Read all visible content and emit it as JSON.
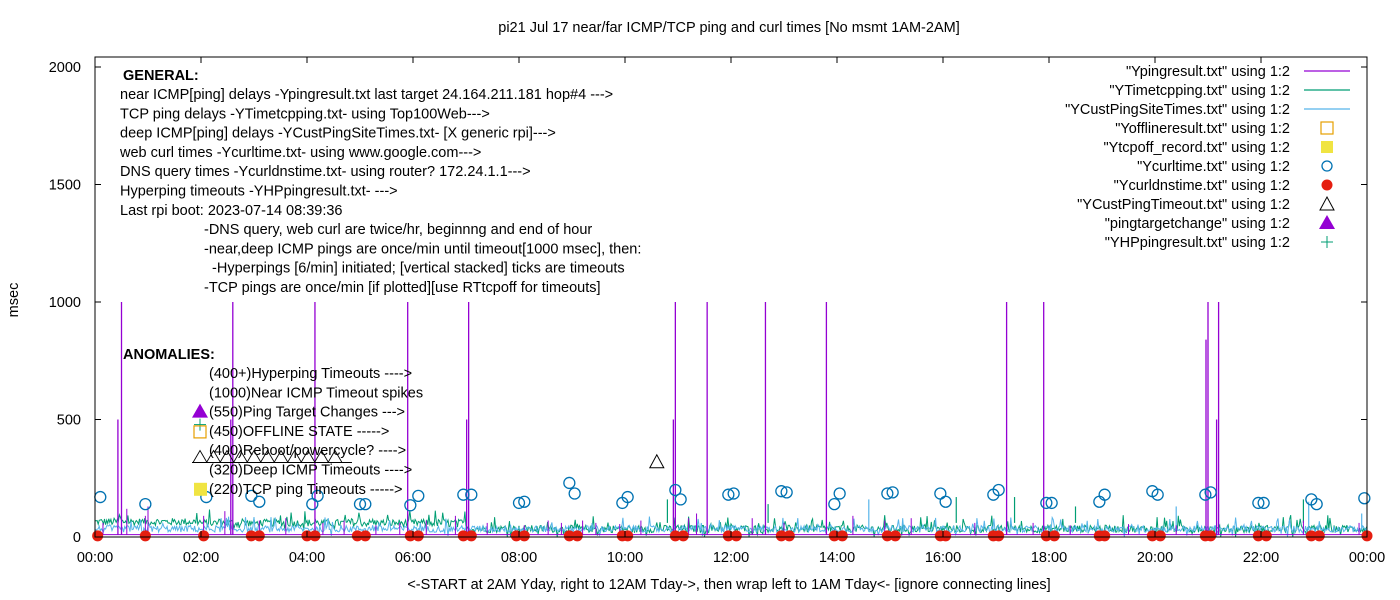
{
  "chart_data": {
    "type": "line",
    "title": "pi21 Jul 17  near/far ICMP/TCP ping and curl times [No msmt 1AM-2AM]",
    "xlabel": "<-START at 2AM Yday, right to 12AM Tday->, then wrap left to 1AM Tday<- [ignore connecting lines]",
    "ylabel": "msec",
    "xlim_hours": [
      0,
      24
    ],
    "ylim": [
      0,
      2000
    ],
    "grid": false,
    "x_ticks": [
      {
        "h": 0,
        "label": "00:00"
      },
      {
        "h": 2,
        "label": "02:00"
      },
      {
        "h": 4,
        "label": "04:00"
      },
      {
        "h": 6,
        "label": "06:00"
      },
      {
        "h": 8,
        "label": "08:00"
      },
      {
        "h": 10,
        "label": "10:00"
      },
      {
        "h": 12,
        "label": "12:00"
      },
      {
        "h": 14,
        "label": "14:00"
      },
      {
        "h": 16,
        "label": "16:00"
      },
      {
        "h": 18,
        "label": "18:00"
      },
      {
        "h": 20,
        "label": "20:00"
      },
      {
        "h": 22,
        "label": "22:00"
      },
      {
        "h": 24,
        "label": "00:00"
      }
    ],
    "y_ticks": [
      {
        "v": 0,
        "label": "0"
      },
      {
        "v": 500,
        "label": "500"
      },
      {
        "v": 1000,
        "label": "1000"
      },
      {
        "v": 1500,
        "label": "1500"
      },
      {
        "v": 2000,
        "label": "2000"
      }
    ],
    "legend_position": "top-right",
    "legend": [
      {
        "label": "\"Ypingresult.txt\" using 1:2",
        "style": "line",
        "color": "#9400d3"
      },
      {
        "label": "\"YTimetcpping.txt\" using 1:2",
        "style": "line",
        "color": "#009e73"
      },
      {
        "label": "\"YCustPingSiteTimes.txt\" using 1:2",
        "style": "line",
        "color": "#56b4e9"
      },
      {
        "label": "\"Yofflineresult.txt\" using 1:2",
        "style": "open-square",
        "color": "#e69f00"
      },
      {
        "label": "\"Ytcpoff_record.txt\" using 1:2",
        "style": "filled-square",
        "color": "#f0e442"
      },
      {
        "label": "\"Ycurltime.txt\" using 1:2",
        "style": "open-circle",
        "color": "#0072b2"
      },
      {
        "label": "\"Ycurldnstime.txt\" using 1:2",
        "style": "filled-circle",
        "color": "#e51e10"
      },
      {
        "label": "\"YCustPingTimeout.txt\" using 1:2",
        "style": "open-triangle",
        "color": "#000000"
      },
      {
        "label": "\"pingtargetchange\" using 1:2",
        "style": "filled-triangle",
        "color": "#9400d3"
      },
      {
        "label": "\"YHPpingresult.txt\" using 1:2",
        "style": "plus",
        "color": "#009e73"
      }
    ],
    "series": [
      {
        "name": "Ypingresult.txt",
        "kind": "spikes",
        "baseline_msec": 10,
        "timeout_spikes_1000": [
          0.5,
          2.6,
          4.15,
          5.9,
          7.05,
          10.95,
          11.55,
          12.65,
          13.8,
          17.2,
          17.9,
          21.0,
          21.2
        ],
        "partial_spikes": [
          {
            "h": 0.47,
            "v": 500
          },
          {
            "h": 2.6,
            "v": 500
          },
          {
            "h": 7.05,
            "v": 500
          },
          {
            "h": 10.95,
            "v": 500
          },
          {
            "h": 21.0,
            "v": 840
          },
          {
            "h": 21.2,
            "v": 500
          }
        ],
        "minor_spikes": [
          {
            "h": 0.15,
            "v": 60
          },
          {
            "h": 0.6,
            "v": 120
          },
          {
            "h": 0.95,
            "v": 90
          },
          {
            "h": 1.0,
            "v": 130
          },
          {
            "h": 2.05,
            "v": 90
          },
          {
            "h": 2.45,
            "v": 110
          },
          {
            "h": 3.1,
            "v": 70
          },
          {
            "h": 3.6,
            "v": 80
          },
          {
            "h": 4.3,
            "v": 60
          },
          {
            "h": 4.7,
            "v": 70
          },
          {
            "h": 5.3,
            "v": 50
          },
          {
            "h": 5.75,
            "v": 60
          },
          {
            "h": 6.25,
            "v": 70
          },
          {
            "h": 6.8,
            "v": 90
          },
          {
            "h": 7.4,
            "v": 60
          },
          {
            "h": 8.1,
            "v": 50
          },
          {
            "h": 8.55,
            "v": 70
          },
          {
            "h": 8.8,
            "v": 60
          },
          {
            "h": 9.2,
            "v": 70
          },
          {
            "h": 9.45,
            "v": 60
          },
          {
            "h": 9.9,
            "v": 55
          },
          {
            "h": 10.3,
            "v": 70
          },
          {
            "h": 11.2,
            "v": 80
          },
          {
            "h": 11.35,
            "v": 100
          },
          {
            "h": 12.4,
            "v": 80
          },
          {
            "h": 13.0,
            "v": 60
          },
          {
            "h": 14.3,
            "v": 90
          },
          {
            "h": 14.9,
            "v": 70
          },
          {
            "h": 15.4,
            "v": 80
          },
          {
            "h": 16.6,
            "v": 60
          },
          {
            "h": 17.7,
            "v": 60
          },
          {
            "h": 18.4,
            "v": 50
          },
          {
            "h": 19.5,
            "v": 55
          },
          {
            "h": 20.4,
            "v": 50
          },
          {
            "h": 22.8,
            "v": 70
          },
          {
            "h": 23.85,
            "v": 60
          }
        ]
      },
      {
        "name": "YTimetcpping.txt",
        "kind": "noisy",
        "base_segments": [
          {
            "h0": 0.0,
            "h1": 2.0,
            "v": 60
          },
          {
            "h0": 2.0,
            "h1": 7.0,
            "v": 55
          },
          {
            "h0": 7.0,
            "h1": 24.0,
            "v": 30
          }
        ],
        "noise_msec": 45,
        "peaks": [
          {
            "h": 10.8,
            "v": 160
          },
          {
            "h": 12.7,
            "v": 140
          },
          {
            "h": 16.25,
            "v": 170
          },
          {
            "h": 17.35,
            "v": 170
          },
          {
            "h": 18.5,
            "v": 130
          },
          {
            "h": 22.8,
            "v": 160
          }
        ]
      },
      {
        "name": "YCustPingSiteTimes.txt",
        "kind": "noisy",
        "base_segments": [
          {
            "h0": 0.0,
            "h1": 24.0,
            "v": 30
          }
        ],
        "noise_msec": 40,
        "peaks": [
          {
            "h": 14.6,
            "v": 160
          },
          {
            "h": 20.4,
            "v": 130
          },
          {
            "h": 22.9,
            "v": 150
          },
          {
            "h": 23.9,
            "v": 100
          }
        ]
      }
    ],
    "markers": {
      "curltime_open_circles": [
        [
          0.1,
          170
        ],
        [
          0.95,
          140
        ],
        [
          2.1,
          170
        ],
        [
          2.95,
          175
        ],
        [
          3.1,
          150
        ],
        [
          4.1,
          140
        ],
        [
          4.2,
          175
        ],
        [
          5.0,
          140
        ],
        [
          5.1,
          140
        ],
        [
          5.95,
          135
        ],
        [
          6.1,
          175
        ],
        [
          6.95,
          180
        ],
        [
          7.1,
          180
        ],
        [
          8.0,
          145
        ],
        [
          8.1,
          150
        ],
        [
          8.95,
          230
        ],
        [
          9.05,
          185
        ],
        [
          9.95,
          145
        ],
        [
          10.05,
          170
        ],
        [
          10.95,
          200
        ],
        [
          11.05,
          160
        ],
        [
          11.95,
          180
        ],
        [
          12.05,
          185
        ],
        [
          12.95,
          195
        ],
        [
          13.05,
          190
        ],
        [
          13.95,
          140
        ],
        [
          14.05,
          185
        ],
        [
          14.95,
          185
        ],
        [
          15.05,
          190
        ],
        [
          15.95,
          185
        ],
        [
          16.05,
          150
        ],
        [
          16.95,
          180
        ],
        [
          17.05,
          200
        ],
        [
          17.95,
          145
        ],
        [
          18.05,
          145
        ],
        [
          18.95,
          150
        ],
        [
          19.05,
          180
        ],
        [
          19.95,
          195
        ],
        [
          20.05,
          180
        ],
        [
          20.95,
          180
        ],
        [
          21.05,
          190
        ],
        [
          21.95,
          145
        ],
        [
          22.05,
          145
        ],
        [
          22.95,
          160
        ],
        [
          23.05,
          140
        ],
        [
          23.95,
          165
        ]
      ],
      "curldnstime_filled_circles_hours": [
        0.05,
        0.95,
        2.05,
        2.95,
        3.1,
        4.0,
        4.15,
        4.95,
        5.1,
        5.95,
        6.1,
        6.95,
        7.1,
        7.95,
        8.1,
        8.95,
        9.1,
        9.95,
        10.05,
        10.95,
        11.1,
        11.95,
        12.1,
        12.95,
        13.1,
        13.95,
        14.1,
        14.95,
        15.1,
        15.95,
        16.05,
        16.95,
        17.05,
        17.95,
        18.1,
        18.95,
        19.05,
        19.95,
        20.1,
        20.95,
        21.05,
        21.95,
        22.1,
        22.95,
        23.1,
        24.0
      ],
      "curldnstime_value_msec": 5,
      "custpingtimeout_open_triangles": [
        [
          10.6,
          320
        ]
      ]
    },
    "annotations": {
      "general_heading": "GENERAL:",
      "general_lines": [
        "near ICMP[ping] delays -Ypingresult.txt last target 24.164.211.181 hop#4 --->",
        "TCP ping delays -YTimetcpping.txt- using Top100Web--->",
        "deep ICMP[ping] delays -YCustPingSiteTimes.txt- [X generic rpi]--->",
        "web curl times -Ycurltime.txt- using www.google.com--->",
        "DNS query times -Ycurldnstime.txt- using router? 172.24.1.1--->",
        "Hyperping timeouts -YHPpingresult.txt- --->",
        "Last rpi boot: 2023-07-14 08:39:36"
      ],
      "notes": [
        "-DNS query, web curl are twice/hr, beginnng and end of hour",
        "-near,deep ICMP pings are once/min until timeout[1000 msec], then:",
        "  -Hyperpings [6/min] initiated; [vertical stacked] ticks are timeouts",
        "-TCP pings are once/min [if plotted][use RTtcpoff for timeouts]"
      ],
      "anomalies_heading": "ANOMALIES:",
      "anomalies": [
        {
          "label": "(400+)Hyperping Timeouts ---->",
          "marker": "none"
        },
        {
          "label": "(1000)Near ICMP Timeout spikes",
          "marker": "none"
        },
        {
          "label": "(550)Ping Target Changes --->",
          "marker": "filled-triangle"
        },
        {
          "label": "(450)OFFLINE STATE ----->",
          "marker": "open-square"
        },
        {
          "label": "(400)Reboot/powercycle? ---->",
          "marker": "none"
        },
        {
          "label": "(320)Deep ICMP Timeouts ---->",
          "marker": "open-triangle-row"
        },
        {
          "label": "(220)TCP ping Timeouts ----->",
          "marker": "filled-square"
        }
      ]
    }
  }
}
